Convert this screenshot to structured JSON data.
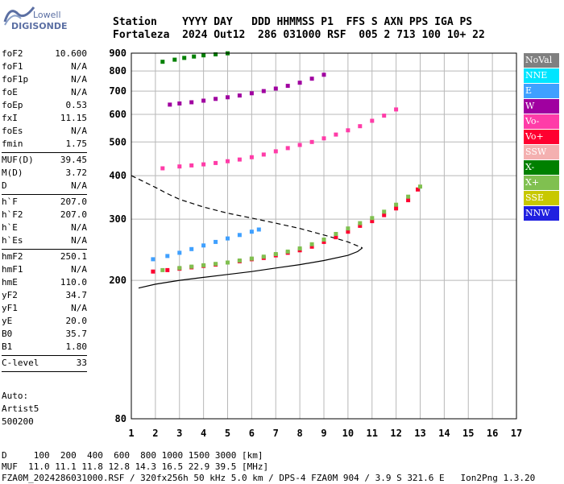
{
  "logo": {
    "line1": "Lowell",
    "line2": "DIGISONDE"
  },
  "header": {
    "line1": "Station    YYYY DAY   DDD HHMMSS P1  FFS S AXN PPS IGA PS",
    "line2": "Fortaleza  2024 Out12  286 031000 RSF  005 2 713 100 10+ 22"
  },
  "left_panel": [
    [
      {
        "label": "foF2",
        "value": "10.600"
      },
      {
        "label": "foF1",
        "value": "N/A"
      },
      {
        "label": "foF1p",
        "value": "N/A"
      },
      {
        "label": "foE",
        "value": "N/A"
      },
      {
        "label": "foEp",
        "value": "0.53"
      },
      {
        "label": "fxI",
        "value": "11.15"
      },
      {
        "label": "foEs",
        "value": "N/A"
      },
      {
        "label": "fmin",
        "value": "1.75"
      }
    ],
    [
      {
        "label": "MUF(D)",
        "value": "39.45"
      },
      {
        "label": "M(D)",
        "value": "3.72"
      },
      {
        "label": "D",
        "value": "N/A"
      }
    ],
    [
      {
        "label": "h`F",
        "value": "207.0"
      },
      {
        "label": "h`F2",
        "value": "207.0"
      },
      {
        "label": "h`E",
        "value": "N/A"
      },
      {
        "label": "h`Es",
        "value": "N/A"
      }
    ],
    [
      {
        "label": "hmF2",
        "value": "250.1"
      },
      {
        "label": "hmF1",
        "value": "N/A"
      },
      {
        "label": "hmE",
        "value": "110.0"
      },
      {
        "label": "yF2",
        "value": "34.7"
      },
      {
        "label": "yF1",
        "value": "N/A"
      },
      {
        "label": "yE",
        "value": "20.0"
      },
      {
        "label": "B0",
        "value": "35.7"
      },
      {
        "label": "B1",
        "value": "1.80"
      }
    ],
    [
      {
        "label": "C-level",
        "value": "33"
      }
    ]
  ],
  "autoscaling": [
    "Auto:",
    "Artist5",
    "500200"
  ],
  "legend": [
    {
      "label": "NoVal",
      "color": "#808080"
    },
    {
      "label": "NNE",
      "color": "#00e5ff"
    },
    {
      "label": "E",
      "color": "#3fa0ff"
    },
    {
      "label": "W",
      "color": "#a000a0"
    },
    {
      "label": "Vo-",
      "color": "#ff3ca8"
    },
    {
      "label": "Vo+",
      "color": "#ff0030"
    },
    {
      "label": "SSW",
      "color": "#f4b0b0"
    },
    {
      "label": "X-",
      "color": "#008000"
    },
    {
      "label": "X+",
      "color": "#80c050"
    },
    {
      "label": "SSE",
      "color": "#c8c800"
    },
    {
      "label": "NNW",
      "color": "#2020e0"
    }
  ],
  "footer": {
    "line1": "D     100  200  400  600  800 1000 1500 3000 [km]",
    "line2": "MUF  11.0 11.1 11.8 12.8 14.3 16.5 22.9 39.5 [MHz]",
    "line3": "FZA0M_2024286031000.RSF / 320fx256h 50 kHz 5.0 km / DPS-4 FZA0M 904 / 3.9 S 321.6 E   Ion2Png 1.3.20"
  },
  "chart_data": {
    "type": "scatter",
    "title": "",
    "xlabel": "",
    "ylabel": "",
    "xlim": [
      1,
      17
    ],
    "ylim": [
      80,
      900
    ],
    "x_scale": "linear",
    "y_scale": "log",
    "x_ticks": [
      1,
      2,
      3,
      4,
      5,
      6,
      7,
      8,
      9,
      10,
      11,
      12,
      13,
      14,
      15,
      16,
      17
    ],
    "y_ticks": [
      80,
      200,
      300,
      400,
      500,
      600,
      700,
      800,
      900
    ],
    "grid": true,
    "series": [
      {
        "name": "Vo+",
        "color": "#ff0030",
        "x": [
          1.9,
          2.5,
          3.0,
          3.5,
          4.0,
          4.5,
          5.0,
          5.5,
          6.0,
          6.5,
          7.0,
          7.5,
          8.0,
          8.5,
          9.0,
          9.5,
          10.0,
          10.5,
          11.0,
          11.5,
          12.0,
          12.5,
          12.9
        ],
        "y": [
          212,
          214,
          216,
          218,
          220,
          222,
          225,
          227,
          230,
          232,
          236,
          240,
          244,
          250,
          258,
          266,
          276,
          287,
          296,
          308,
          322,
          340,
          365
        ]
      },
      {
        "name": "X+",
        "color": "#80c050",
        "x": [
          2.3,
          3.0,
          3.5,
          4.0,
          4.5,
          5.0,
          5.5,
          6.0,
          6.5,
          7.0,
          7.5,
          8.0,
          8.5,
          9.0,
          9.5,
          10.0,
          10.5,
          11.0,
          11.5,
          12.0,
          12.5,
          13.0
        ],
        "y": [
          214,
          217,
          219,
          221,
          223,
          225,
          228,
          231,
          234,
          238,
          242,
          247,
          254,
          262,
          272,
          282,
          292,
          302,
          315,
          330,
          348,
          372
        ]
      },
      {
        "name": "E",
        "color": "#3fa0ff",
        "x": [
          1.9,
          2.5,
          3.0,
          3.5,
          4.0,
          4.5,
          5.0,
          5.5,
          6.0,
          6.3
        ],
        "y": [
          230,
          235,
          240,
          246,
          252,
          258,
          264,
          270,
          276,
          280
        ]
      },
      {
        "name": "Vo-",
        "color": "#ff3ca8",
        "x": [
          2.3,
          3.0,
          3.5,
          4.0,
          4.5,
          5.0,
          5.5,
          6.0,
          6.5,
          7.0,
          7.5,
          8.0,
          8.5,
          9.0,
          9.5,
          10.0,
          10.5,
          11.0,
          11.5,
          12.0
        ],
        "y": [
          420,
          425,
          428,
          431,
          435,
          440,
          445,
          452,
          460,
          470,
          480,
          490,
          500,
          512,
          525,
          540,
          555,
          575,
          595,
          620
        ]
      },
      {
        "name": "W",
        "color": "#a000a0",
        "x": [
          2.6,
          3.0,
          3.5,
          4.0,
          4.5,
          5.0,
          5.5,
          6.0,
          6.5,
          7.0,
          7.5,
          8.0,
          8.5,
          9.0
        ],
        "y": [
          640,
          645,
          650,
          657,
          665,
          672,
          680,
          690,
          700,
          712,
          725,
          740,
          760,
          780
        ]
      },
      {
        "name": "X-",
        "color": "#008000",
        "x": [
          2.3,
          2.8,
          3.2,
          3.6,
          4.0,
          4.5,
          5.0
        ],
        "y": [
          850,
          862,
          872,
          880,
          887,
          893,
          899
        ]
      }
    ],
    "profile_line": {
      "x": [
        1.3,
        2.0,
        3.0,
        4.0,
        5.0,
        6.0,
        7.0,
        8.0,
        9.0,
        10.0,
        10.4,
        10.6
      ],
      "y": [
        190,
        195,
        200,
        204,
        208,
        212,
        217,
        222,
        228,
        236,
        242,
        248
      ]
    },
    "dashed_line": {
      "x": [
        1.0,
        1.5,
        2.0,
        2.5,
        3.0,
        4.0,
        5.0,
        6.0,
        7.0,
        8.0,
        9.0,
        10.0,
        10.6
      ],
      "y": [
        400,
        385,
        370,
        355,
        342,
        325,
        312,
        302,
        292,
        282,
        270,
        258,
        248
      ]
    }
  }
}
